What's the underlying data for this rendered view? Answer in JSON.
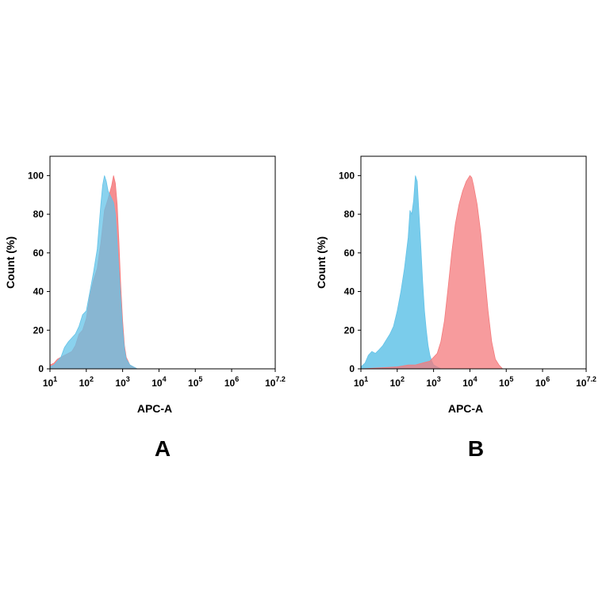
{
  "chart_data": [
    {
      "type": "area",
      "panel_label": "A",
      "xlabel": "APC-A",
      "ylabel": "Count  (%)",
      "x_scale": "log10",
      "xlim": [
        10,
        15848932
      ],
      "ylim": [
        0,
        110
      ],
      "y_ticks": [
        0,
        20,
        40,
        60,
        80,
        100
      ],
      "x_ticks": [
        {
          "base": "10",
          "exp": "1",
          "value": 10
        },
        {
          "base": "10",
          "exp": "2",
          "value": 100
        },
        {
          "base": "10",
          "exp": "3",
          "value": 1000
        },
        {
          "base": "10",
          "exp": "4",
          "value": 10000
        },
        {
          "base": "10",
          "exp": "5",
          "value": 100000
        },
        {
          "base": "10",
          "exp": "6",
          "value": 1000000
        },
        {
          "base": "10",
          "exp": "7.2",
          "value": 15848932
        }
      ],
      "grid": false,
      "series": [
        {
          "color": "#f47a7c",
          "points": [
            [
              10,
              2
            ],
            [
              13,
              3
            ],
            [
              16,
              5
            ],
            [
              20,
              6
            ],
            [
              25,
              7
            ],
            [
              32,
              8
            ],
            [
              40,
              9
            ],
            [
              50,
              12
            ],
            [
              63,
              18
            ],
            [
              79,
              20
            ],
            [
              100,
              26
            ],
            [
              126,
              38
            ],
            [
              158,
              46
            ],
            [
              200,
              52
            ],
            [
              251,
              65
            ],
            [
              316,
              82
            ],
            [
              398,
              88
            ],
            [
              501,
              95
            ],
            [
              562,
              100
            ],
            [
              631,
              96
            ],
            [
              708,
              85
            ],
            [
              794,
              65
            ],
            [
              891,
              42
            ],
            [
              1000,
              25
            ],
            [
              1122,
              12
            ],
            [
              1259,
              6
            ],
            [
              1585,
              2
            ],
            [
              2000,
              1
            ],
            [
              2512,
              0
            ]
          ]
        },
        {
          "color": "#63c3e8",
          "points": [
            [
              10,
              1
            ],
            [
              13,
              2
            ],
            [
              16,
              4
            ],
            [
              20,
              6
            ],
            [
              25,
              11
            ],
            [
              32,
              14
            ],
            [
              40,
              16
            ],
            [
              50,
              18
            ],
            [
              63,
              22
            ],
            [
              79,
              28
            ],
            [
              100,
              30
            ],
            [
              126,
              40
            ],
            [
              158,
              50
            ],
            [
              200,
              62
            ],
            [
              251,
              85
            ],
            [
              282,
              95
            ],
            [
              316,
              100
            ],
            [
              355,
              97
            ],
            [
              398,
              92
            ],
            [
              447,
              90
            ],
            [
              501,
              88
            ],
            [
              562,
              86
            ],
            [
              631,
              80
            ],
            [
              708,
              65
            ],
            [
              794,
              50
            ],
            [
              891,
              35
            ],
            [
              1000,
              20
            ],
            [
              1122,
              10
            ],
            [
              1259,
              5
            ],
            [
              1585,
              2
            ],
            [
              2000,
              1
            ],
            [
              2512,
              0
            ]
          ]
        }
      ]
    },
    {
      "type": "area",
      "panel_label": "B",
      "xlabel": "APC-A",
      "ylabel": "Count  (%)",
      "x_scale": "log10",
      "xlim": [
        10,
        15848932
      ],
      "ylim": [
        0,
        110
      ],
      "y_ticks": [
        0,
        20,
        40,
        60,
        80,
        100
      ],
      "x_ticks": [
        {
          "base": "10",
          "exp": "1",
          "value": 10
        },
        {
          "base": "10",
          "exp": "2",
          "value": 100
        },
        {
          "base": "10",
          "exp": "3",
          "value": 1000
        },
        {
          "base": "10",
          "exp": "4",
          "value": 10000
        },
        {
          "base": "10",
          "exp": "5",
          "value": 100000
        },
        {
          "base": "10",
          "exp": "6",
          "value": 1000000
        },
        {
          "base": "10",
          "exp": "7.2",
          "value": 15848932
        }
      ],
      "grid": false,
      "series": [
        {
          "color": "#63c3e8",
          "points": [
            [
              10,
              1
            ],
            [
              13,
              3
            ],
            [
              16,
              7
            ],
            [
              20,
              9
            ],
            [
              25,
              8
            ],
            [
              32,
              10
            ],
            [
              40,
              12
            ],
            [
              50,
              15
            ],
            [
              63,
              18
            ],
            [
              79,
              22
            ],
            [
              100,
              30
            ],
            [
              126,
              40
            ],
            [
              158,
              52
            ],
            [
              200,
              68
            ],
            [
              224,
              82
            ],
            [
              251,
              80
            ],
            [
              282,
              87
            ],
            [
              316,
              100
            ],
            [
              355,
              97
            ],
            [
              398,
              80
            ],
            [
              447,
              63
            ],
            [
              501,
              45
            ],
            [
              562,
              30
            ],
            [
              631,
              20
            ],
            [
              708,
              12
            ],
            [
              794,
              7
            ],
            [
              891,
              4
            ],
            [
              1000,
              2
            ],
            [
              1259,
              1
            ],
            [
              1585,
              0
            ]
          ]
        },
        {
          "color": "#f47a7c",
          "points": [
            [
              10,
              0
            ],
            [
              100,
              1
            ],
            [
              200,
              2
            ],
            [
              316,
              2
            ],
            [
              501,
              3
            ],
            [
              794,
              4
            ],
            [
              1000,
              6
            ],
            [
              1259,
              8
            ],
            [
              1585,
              14
            ],
            [
              2000,
              25
            ],
            [
              2512,
              42
            ],
            [
              3162,
              60
            ],
            [
              3981,
              75
            ],
            [
              5012,
              85
            ],
            [
              6310,
              92
            ],
            [
              7943,
              97
            ],
            [
              10000,
              100
            ],
            [
              11220,
              99
            ],
            [
              12589,
              95
            ],
            [
              15849,
              85
            ],
            [
              19953,
              70
            ],
            [
              25119,
              50
            ],
            [
              31623,
              30
            ],
            [
              39811,
              14
            ],
            [
              50119,
              5
            ],
            [
              63096,
              2
            ],
            [
              79433,
              0
            ]
          ]
        }
      ]
    }
  ]
}
